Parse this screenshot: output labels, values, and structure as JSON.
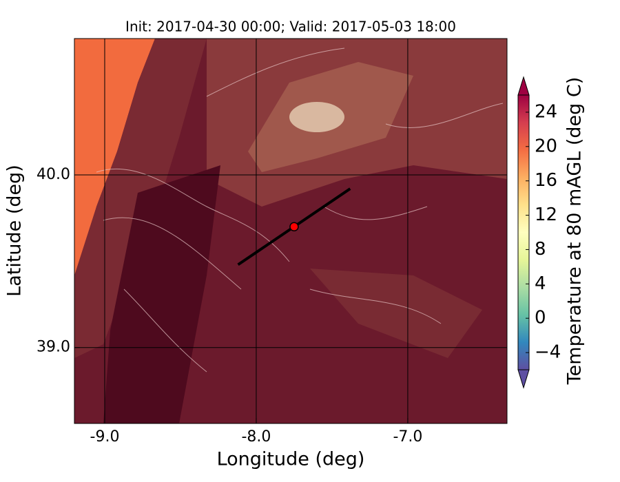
{
  "chart_data": {
    "type": "map",
    "title": "Init: 2017-04-30 00:00; Valid: 2017-05-03 18:00",
    "x_label": "Longitude (deg)",
    "y_label": "Latitude (deg)",
    "xlim": [
      -9.2,
      -6.345
    ],
    "ylim": [
      38.56,
      40.79
    ],
    "xticks": [
      {
        "value": -9,
        "label": "-9.0"
      },
      {
        "value": -8,
        "label": "-8.0"
      },
      {
        "value": -7,
        "label": "-7.0"
      }
    ],
    "yticks": [
      {
        "value": 39,
        "label": "39.0"
      },
      {
        "value": 40,
        "label": "40.0"
      }
    ],
    "grid": true,
    "point": {
      "x": -7.75,
      "y": 39.7,
      "color": "#ff0000"
    },
    "line": {
      "x": [
        -8.12,
        -7.38
      ],
      "y": [
        39.48,
        39.92
      ],
      "color": "#000000"
    },
    "colorbar": {
      "label": "Temperature at 80 mAGL (deg C)",
      "clim": [
        -6,
        26
      ],
      "ticks": [
        {
          "value": -4,
          "label": "−4"
        },
        0,
        4,
        8,
        12,
        16,
        20,
        24
      ],
      "colormap": [
        "#5e4fa2",
        "#3288bd",
        "#66c2a5",
        "#abdda4",
        "#e6f598",
        "#ffffbf",
        "#fee08b",
        "#fdae61",
        "#f46d43",
        "#d53e4f",
        "#9e0142"
      ]
    }
  }
}
